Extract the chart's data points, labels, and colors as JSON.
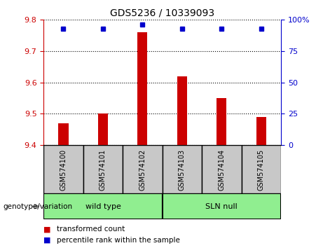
{
  "title": "GDS5236 / 10339093",
  "samples": [
    "GSM574100",
    "GSM574101",
    "GSM574102",
    "GSM574103",
    "GSM574104",
    "GSM574105"
  ],
  "bar_values": [
    9.47,
    9.5,
    9.76,
    9.62,
    9.55,
    9.49
  ],
  "bar_baseline": 9.4,
  "bar_color": "#cc0000",
  "percentile_values": [
    93,
    93,
    96,
    93,
    93,
    93
  ],
  "percentile_color": "#0000cc",
  "ylim_left": [
    9.4,
    9.8
  ],
  "ylim_right": [
    0,
    100
  ],
  "yticks_left": [
    9.4,
    9.5,
    9.6,
    9.7,
    9.8
  ],
  "yticks_right": [
    0,
    25,
    50,
    75,
    100
  ],
  "groups": [
    {
      "label": "wild type",
      "indices": [
        0,
        1,
        2
      ],
      "color": "#90ee90"
    },
    {
      "label": "SLN null",
      "indices": [
        3,
        4,
        5
      ],
      "color": "#90ee90"
    }
  ],
  "group_label": "genotype/variation",
  "legend_items": [
    {
      "label": "transformed count",
      "color": "#cc0000"
    },
    {
      "label": "percentile rank within the sample",
      "color": "#0000cc"
    }
  ],
  "grid_color": "#000000",
  "left_axis_color": "#cc0000",
  "right_axis_color": "#0000cc",
  "bar_width": 0.25,
  "sample_area_color": "#c8c8c8",
  "figsize": [
    4.61,
    3.54
  ],
  "dpi": 100
}
